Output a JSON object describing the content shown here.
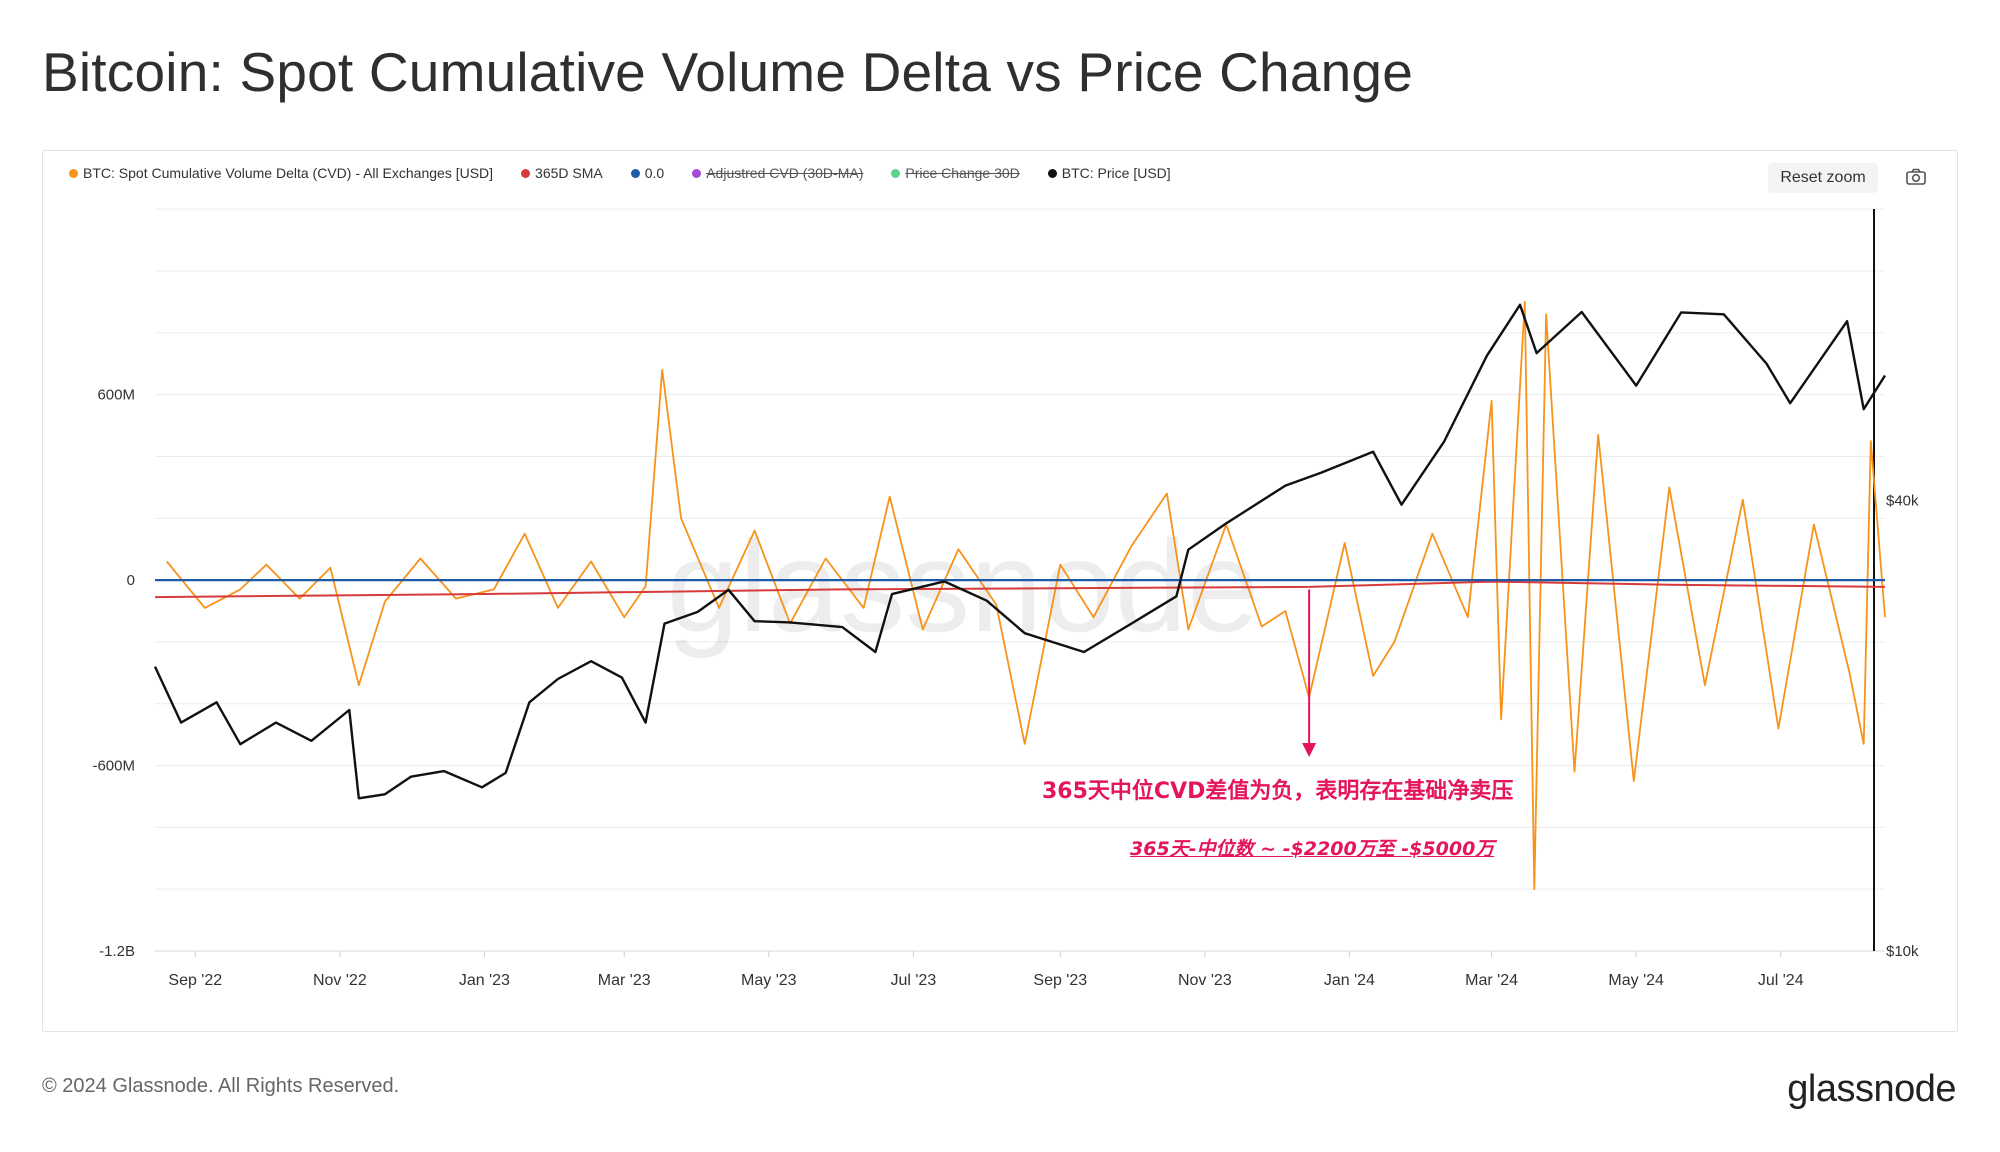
{
  "title": "Bitcoin: Spot Cumulative Volume Delta vs Price Change",
  "legend": [
    {
      "label": "BTC: Spot Cumulative Volume Delta (CVD) - All Exchanges [USD]",
      "color": "#f7931a",
      "hidden": false
    },
    {
      "label": "365D SMA",
      "color": "#d63b3b",
      "hidden": false
    },
    {
      "label": "0.0",
      "color": "#1f5aa8",
      "hidden": false
    },
    {
      "label": "Adjustred CVD (30D-MA)",
      "color": "#a64bd6",
      "hidden": true
    },
    {
      "label": "Price Change 30D",
      "color": "#5ed18b",
      "hidden": true
    },
    {
      "label": "BTC: Price [USD]",
      "color": "#111111",
      "hidden": false
    }
  ],
  "controls": {
    "reset_zoom": "Reset zoom",
    "camera_icon": "camera-icon"
  },
  "watermark": "glassnode",
  "annotation": {
    "main": "365天中位CVD差值为负，表明存在基础净卖压",
    "sub": "365天-中位数 ~ -$2200万至 -$5000万",
    "color": "#e4155b"
  },
  "footer": {
    "copyright": "© 2024 Glassnode. All Rights Reserved.",
    "logo": "glassnode"
  },
  "chart_data": {
    "type": "line",
    "title": "Bitcoin: Spot Cumulative Volume Delta vs Price Change",
    "x_tick_labels": [
      "Sep '22",
      "Nov '22",
      "Jan '23",
      "Mar '23",
      "May '23",
      "Jul '23",
      "Sep '23",
      "Nov '23",
      "Jan '24",
      "Mar '24",
      "May '24",
      "Jul '24"
    ],
    "x_range": [
      "2022-08-15",
      "2024-08-14"
    ],
    "y_left": {
      "tick_labels": [
        "600M",
        "0",
        "-600M",
        "-1.2B"
      ],
      "ticks": [
        600,
        0,
        -600,
        -1200
      ],
      "range": [
        -1200,
        1220
      ],
      "unit": "M USD"
    },
    "y_right": {
      "tick_labels": [
        "$40k",
        "$10k"
      ],
      "ticks": [
        40000,
        10000
      ],
      "scale": "log",
      "range": [
        10000,
        100000
      ]
    },
    "grid": true,
    "legend_position": "top-left",
    "series": [
      {
        "name": "BTC: Spot Cumulative Volume Delta (CVD) - All Exchanges [USD]",
        "axis": "left",
        "color": "#f7931a",
        "points": [
          [
            "2022-08-20",
            60
          ],
          [
            "2022-09-05",
            -90
          ],
          [
            "2022-09-20",
            -30
          ],
          [
            "2022-10-01",
            50
          ],
          [
            "2022-10-15",
            -60
          ],
          [
            "2022-10-28",
            40
          ],
          [
            "2022-11-09",
            -340
          ],
          [
            "2022-11-20",
            -70
          ],
          [
            "2022-12-05",
            70
          ],
          [
            "2022-12-20",
            -60
          ],
          [
            "2023-01-05",
            -30
          ],
          [
            "2023-01-18",
            150
          ],
          [
            "2023-02-01",
            -90
          ],
          [
            "2023-02-15",
            60
          ],
          [
            "2023-03-01",
            -120
          ],
          [
            "2023-03-10",
            -20
          ],
          [
            "2023-03-17",
            680
          ],
          [
            "2023-03-25",
            200
          ],
          [
            "2023-04-10",
            -90
          ],
          [
            "2023-04-25",
            160
          ],
          [
            "2023-05-10",
            -140
          ],
          [
            "2023-05-25",
            70
          ],
          [
            "2023-06-10",
            -90
          ],
          [
            "2023-06-21",
            270
          ],
          [
            "2023-07-05",
            -160
          ],
          [
            "2023-07-20",
            100
          ],
          [
            "2023-08-05",
            -80
          ],
          [
            "2023-08-17",
            -530
          ],
          [
            "2023-09-01",
            50
          ],
          [
            "2023-09-15",
            -120
          ],
          [
            "2023-10-01",
            110
          ],
          [
            "2023-10-16",
            280
          ],
          [
            "2023-10-25",
            -160
          ],
          [
            "2023-11-10",
            180
          ],
          [
            "2023-11-25",
            -150
          ],
          [
            "2023-12-05",
            -100
          ],
          [
            "2023-12-15",
            -380
          ],
          [
            "2023-12-30",
            120
          ],
          [
            "2024-01-11",
            -310
          ],
          [
            "2024-01-20",
            -200
          ],
          [
            "2024-02-05",
            150
          ],
          [
            "2024-02-20",
            -120
          ],
          [
            "2024-03-01",
            580
          ],
          [
            "2024-03-05",
            -450
          ],
          [
            "2024-03-15",
            900
          ],
          [
            "2024-03-19",
            -1000
          ],
          [
            "2024-03-24",
            860
          ],
          [
            "2024-04-05",
            -620
          ],
          [
            "2024-04-15",
            470
          ],
          [
            "2024-04-30",
            -650
          ],
          [
            "2024-05-15",
            300
          ],
          [
            "2024-05-30",
            -340
          ],
          [
            "2024-06-15",
            260
          ],
          [
            "2024-06-30",
            -480
          ],
          [
            "2024-07-15",
            180
          ],
          [
            "2024-07-30",
            -300
          ],
          [
            "2024-08-05",
            -530
          ],
          [
            "2024-08-08",
            450
          ],
          [
            "2024-08-14",
            -120
          ]
        ]
      },
      {
        "name": "365D SMA",
        "axis": "left",
        "color": "#d63b3b",
        "points": [
          [
            "2022-08-15",
            -55
          ],
          [
            "2023-01-01",
            -45
          ],
          [
            "2023-06-01",
            -30
          ],
          [
            "2023-12-15",
            -22
          ],
          [
            "2024-03-01",
            -5
          ],
          [
            "2024-05-15",
            -15
          ],
          [
            "2024-08-14",
            -22
          ]
        ]
      },
      {
        "name": "0.0",
        "axis": "left",
        "color": "#1f5aa8",
        "points": [
          [
            "2022-08-15",
            0
          ],
          [
            "2024-08-14",
            0
          ]
        ]
      },
      {
        "name": "BTC: Price [USD]",
        "axis": "right",
        "color": "#111111",
        "points": [
          [
            "2022-08-15",
            24000
          ],
          [
            "2022-08-26",
            20200
          ],
          [
            "2022-09-10",
            21500
          ],
          [
            "2022-09-20",
            18900
          ],
          [
            "2022-10-05",
            20200
          ],
          [
            "2022-10-20",
            19100
          ],
          [
            "2022-11-05",
            21000
          ],
          [
            "2022-11-09",
            16000
          ],
          [
            "2022-11-20",
            16200
          ],
          [
            "2022-12-01",
            17100
          ],
          [
            "2022-12-15",
            17400
          ],
          [
            "2022-12-31",
            16550
          ],
          [
            "2023-01-10",
            17300
          ],
          [
            "2023-01-20",
            21500
          ],
          [
            "2023-02-01",
            23100
          ],
          [
            "2023-02-15",
            24400
          ],
          [
            "2023-02-28",
            23200
          ],
          [
            "2023-03-10",
            20200
          ],
          [
            "2023-03-18",
            27400
          ],
          [
            "2023-04-01",
            28400
          ],
          [
            "2023-04-14",
            30400
          ],
          [
            "2023-04-25",
            27600
          ],
          [
            "2023-05-10",
            27500
          ],
          [
            "2023-06-01",
            27100
          ],
          [
            "2023-06-15",
            25100
          ],
          [
            "2023-06-22",
            30000
          ],
          [
            "2023-07-14",
            31200
          ],
          [
            "2023-08-01",
            29400
          ],
          [
            "2023-08-17",
            26600
          ],
          [
            "2023-09-11",
            25100
          ],
          [
            "2023-10-01",
            27400
          ],
          [
            "2023-10-20",
            29800
          ],
          [
            "2023-10-25",
            34400
          ],
          [
            "2023-11-10",
            37300
          ],
          [
            "2023-12-05",
            41900
          ],
          [
            "2023-12-20",
            43600
          ],
          [
            "2024-01-11",
            46500
          ],
          [
            "2024-01-23",
            39500
          ],
          [
            "2024-02-10",
            48000
          ],
          [
            "2024-02-28",
            62500
          ],
          [
            "2024-03-13",
            73100
          ],
          [
            "2024-03-20",
            63000
          ],
          [
            "2024-04-08",
            71500
          ],
          [
            "2024-05-01",
            57000
          ],
          [
            "2024-05-20",
            71400
          ],
          [
            "2024-06-07",
            71000
          ],
          [
            "2024-06-25",
            61000
          ],
          [
            "2024-07-05",
            54000
          ],
          [
            "2024-07-29",
            69500
          ],
          [
            "2024-08-05",
            53000
          ],
          [
            "2024-08-14",
            58800
          ]
        ]
      }
    ]
  }
}
